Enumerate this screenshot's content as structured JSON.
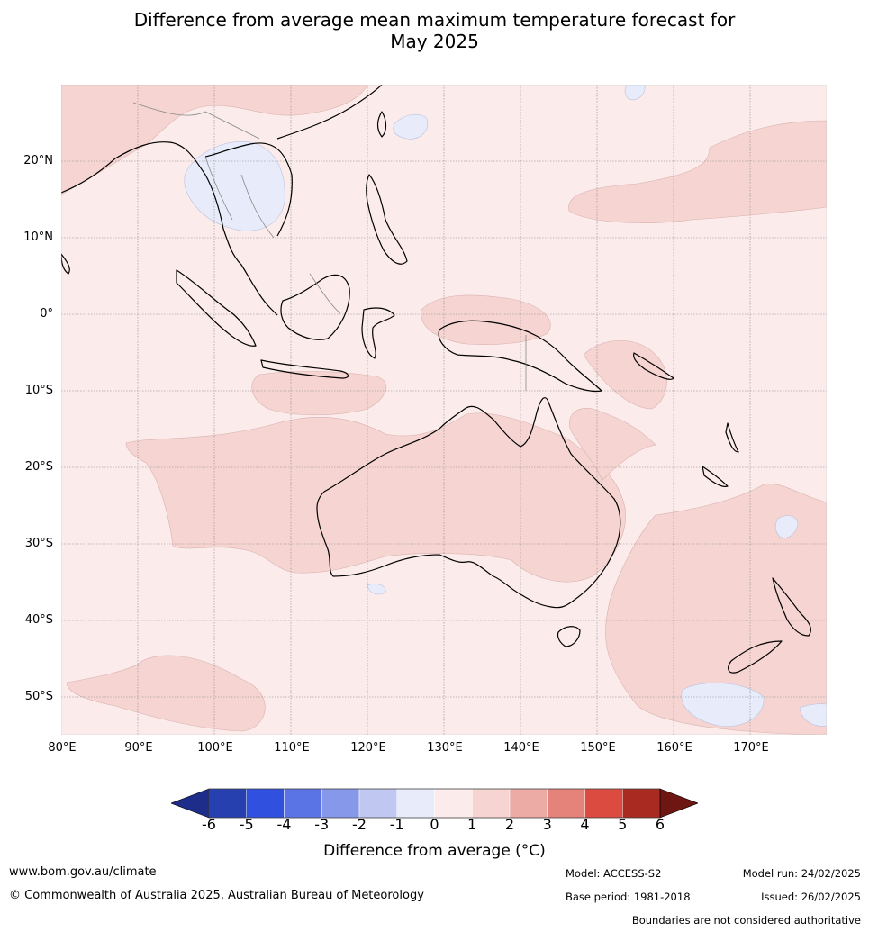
{
  "title": {
    "line1": "Difference from average mean maximum temperature forecast for",
    "line2": "May 2025"
  },
  "map": {
    "projection": "equirectangular",
    "lon_range": [
      80,
      180
    ],
    "lat_range": [
      -55,
      30
    ],
    "gridlines": true,
    "lat_labels": [
      "20°N",
      "10°N",
      "0°",
      "10°S",
      "20°S",
      "30°S",
      "40°S",
      "50°S"
    ],
    "lon_labels": [
      "80°E",
      "90°E",
      "100°E",
      "110°E",
      "120°E",
      "130°E",
      "140°E",
      "150°E",
      "160°E",
      "170°E"
    ],
    "dominant_anomaly": "0 to 1 °C above average",
    "warmer_regions": "1 to 2 °C above average (Western Australia, Queensland coast, Indian Ocean, Pacific, southern Tasman)",
    "cooler_regions": "0 to -1 °C below average (Indochina, small Pacific patches)"
  },
  "colorbar": {
    "ticks": [
      "-6",
      "-5",
      "-4",
      "-3",
      "-2",
      "-1",
      "0",
      "1",
      "2",
      "3",
      "4",
      "5",
      "6"
    ],
    "colors": [
      "#1f2d8a",
      "#2740b0",
      "#3050e0",
      "#5a74e6",
      "#8598ea",
      "#c0c8f2",
      "#e8ecfa",
      "#fbebea",
      "#f5d4d1",
      "#ecaba5",
      "#e5837a",
      "#db4b3f",
      "#a82a20",
      "#6e1712"
    ],
    "label": "Difference from average (°C)"
  },
  "footer": {
    "website": "www.bom.gov.au/climate",
    "copyright": "© Commonwealth of Australia 2025, Australian Bureau of Meteorology",
    "model": "Model: ACCESS-S2",
    "model_run": "Model run: 24/02/2025",
    "base_period": "Base period: 1981-2018",
    "issued": "Issued: 26/02/2025",
    "disclaimer": "Boundaries are not considered authoritative"
  }
}
